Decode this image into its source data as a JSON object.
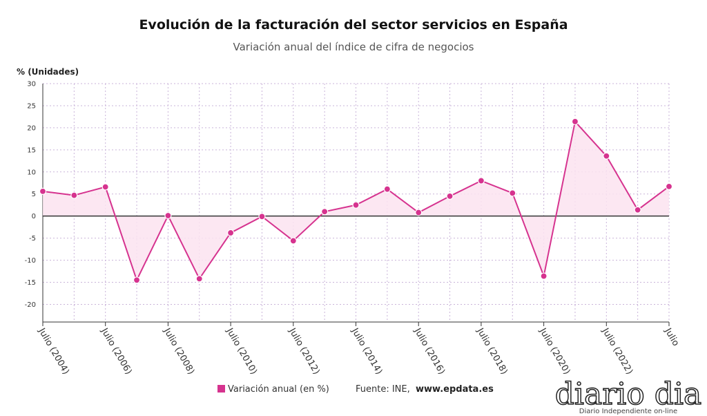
{
  "chart_data": {
    "type": "line",
    "title": "Evolución de la facturación del sector servicios en España",
    "subtitle": "Variación anual del índice de cifra de negocios",
    "y_label": "% (Unidades)",
    "categories": [
      "Julio (2004)",
      null,
      "Julio (2006)",
      null,
      "Julio (2008)",
      null,
      "Julio (2010)",
      null,
      "Julio (2012)",
      null,
      "Julio (2014)",
      null,
      "Julio (2016)",
      null,
      "Julio (2018)",
      null,
      "Julio (2020)",
      null,
      "Julio (2022)",
      null,
      "Julio"
    ],
    "series": [
      {
        "name": "Variación anual (en %)",
        "color": "#d6338f",
        "values": [
          5.6,
          4.7,
          6.6,
          -14.5,
          0.1,
          -14.2,
          -3.8,
          -0.1,
          -5.6,
          1.0,
          2.5,
          6.1,
          0.8,
          4.5,
          8.0,
          5.2,
          -13.6,
          21.4,
          13.6,
          1.4,
          6.7
        ]
      }
    ],
    "ylim": [
      -24,
      30
    ],
    "yticks": [
      -20,
      -15,
      -10,
      -5,
      0,
      5,
      10,
      15,
      20,
      25,
      30
    ],
    "grid": true,
    "source_label": "Fuente: INE,",
    "source_site": "www.epdata.es",
    "logo": "diario dia",
    "logo_tagline": "Diario Independiente on-line"
  }
}
